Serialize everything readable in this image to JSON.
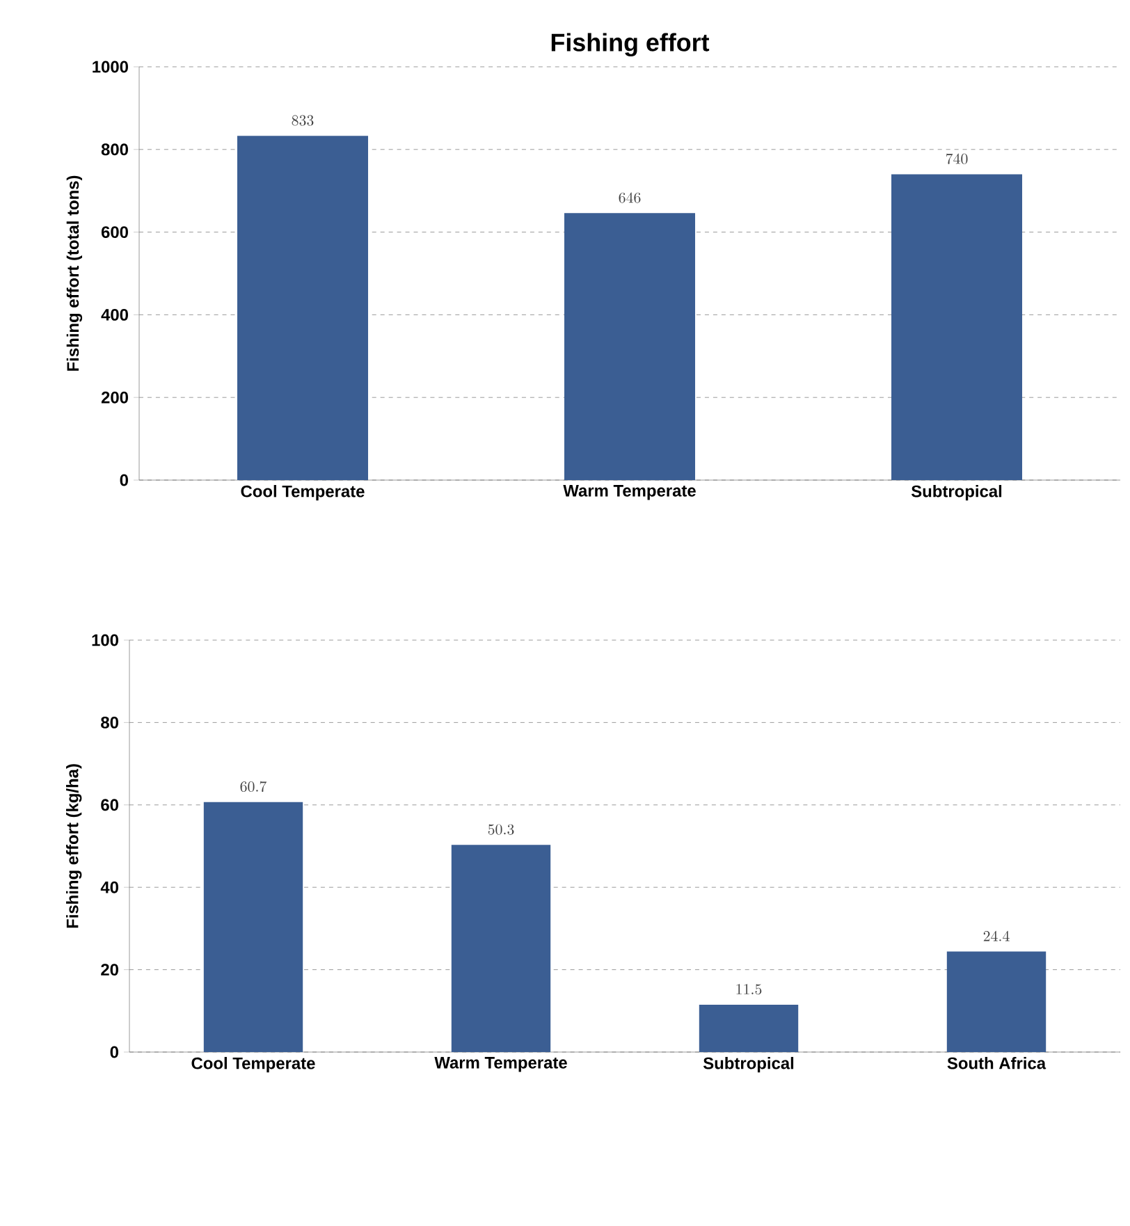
{
  "chart_data": [
    {
      "type": "bar",
      "title": "Fishing effort",
      "ylabel": "Fishing effort (total tons)",
      "categories": [
        "Cool Temperate",
        "Warm Temperate",
        "Subtropical"
      ],
      "values": [
        833,
        646,
        740
      ],
      "color": "#3b5e93",
      "ylim": [
        0,
        1000
      ],
      "yticks": [
        0,
        200,
        400,
        600,
        800,
        1000
      ],
      "grid": "y",
      "data_labels": true
    },
    {
      "type": "bar",
      "ylabel": "Fishing effort (kg/ha)",
      "categories": [
        "Cool Temperate",
        "Warm Temperate",
        "Subtropical",
        "South Africa"
      ],
      "values": [
        60.7,
        50.3,
        11.5,
        24.4
      ],
      "color": "#3b5e93",
      "ylim": [
        0,
        100
      ],
      "yticks": [
        0,
        20,
        40,
        60,
        80,
        100
      ],
      "grid": "y",
      "data_labels": true
    }
  ]
}
